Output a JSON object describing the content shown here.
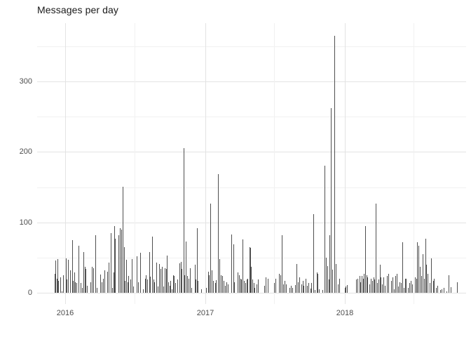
{
  "chart_data": {
    "type": "bar",
    "title": "Messages per day",
    "xlabel": "",
    "ylabel": "",
    "x_unit": "date (daily)",
    "start_date": "2015-12-04",
    "x_ticks": [
      {
        "label": "2016",
        "day": 28
      },
      {
        "label": "2017",
        "day": 394
      },
      {
        "label": "2018",
        "day": 759
      }
    ],
    "x_minor_days": [
      210,
      575,
      940
    ],
    "y_ticks": [
      0,
      100,
      200,
      300
    ],
    "y_minor": [
      50,
      150,
      250,
      350
    ],
    "ylim": [
      0,
      383
    ],
    "grid": true,
    "legend": false,
    "colors": {
      "background": "#ffffff",
      "bar": "#4f4f4f",
      "grid_major": "#e3e3e3",
      "grid_minor": "#f1f1f1",
      "axis_text": "#4d4d4d",
      "title_text": "#1a1a1a"
    },
    "bars": [
      [
        0,
        27
      ],
      [
        2,
        46
      ],
      [
        5,
        20
      ],
      [
        7,
        48
      ],
      [
        10,
        17
      ],
      [
        14,
        22
      ],
      [
        18,
        2
      ],
      [
        22,
        25
      ],
      [
        29,
        49
      ],
      [
        32,
        19
      ],
      [
        35,
        47
      ],
      [
        41,
        32
      ],
      [
        45,
        75
      ],
      [
        48,
        17
      ],
      [
        51,
        29
      ],
      [
        54,
        15
      ],
      [
        57,
        14
      ],
      [
        62,
        67
      ],
      [
        67,
        14
      ],
      [
        71,
        7
      ],
      [
        75,
        58
      ],
      [
        78,
        37
      ],
      [
        81,
        34
      ],
      [
        85,
        10
      ],
      [
        94,
        15
      ],
      [
        98,
        37
      ],
      [
        101,
        35
      ],
      [
        106,
        82
      ],
      [
        110,
        7
      ],
      [
        119,
        26
      ],
      [
        123,
        15
      ],
      [
        127,
        20
      ],
      [
        130,
        32
      ],
      [
        138,
        30
      ],
      [
        141,
        43
      ],
      [
        147,
        85
      ],
      [
        150,
        7
      ],
      [
        155,
        29
      ],
      [
        156,
        95
      ],
      [
        158,
        77
      ],
      [
        167,
        82
      ],
      [
        171,
        92
      ],
      [
        174,
        90
      ],
      [
        178,
        151
      ],
      [
        182,
        65
      ],
      [
        183,
        17
      ],
      [
        187,
        47
      ],
      [
        191,
        15
      ],
      [
        193,
        24
      ],
      [
        198,
        19
      ],
      [
        202,
        48
      ],
      [
        205,
        9
      ],
      [
        215,
        52
      ],
      [
        218,
        15
      ],
      [
        224,
        57
      ],
      [
        231,
        5
      ],
      [
        237,
        20
      ],
      [
        238,
        25
      ],
      [
        242,
        19
      ],
      [
        248,
        58
      ],
      [
        250,
        23
      ],
      [
        255,
        80
      ],
      [
        259,
        19
      ],
      [
        261,
        15
      ],
      [
        266,
        43
      ],
      [
        270,
        9
      ],
      [
        273,
        41
      ],
      [
        277,
        34
      ],
      [
        281,
        37
      ],
      [
        284,
        9
      ],
      [
        288,
        35
      ],
      [
        292,
        34
      ],
      [
        294,
        53
      ],
      [
        297,
        15
      ],
      [
        301,
        10
      ],
      [
        303,
        17
      ],
      [
        306,
        5
      ],
      [
        310,
        25
      ],
      [
        312,
        24
      ],
      [
        316,
        14
      ],
      [
        321,
        19
      ],
      [
        326,
        42
      ],
      [
        330,
        44
      ],
      [
        333,
        34
      ],
      [
        337,
        205
      ],
      [
        339,
        25
      ],
      [
        343,
        73
      ],
      [
        346,
        24
      ],
      [
        350,
        20
      ],
      [
        354,
        35
      ],
      [
        358,
        7
      ],
      [
        367,
        40
      ],
      [
        369,
        19
      ],
      [
        372,
        92
      ],
      [
        374,
        17
      ],
      [
        383,
        5
      ],
      [
        396,
        7
      ],
      [
        401,
        30
      ],
      [
        404,
        25
      ],
      [
        407,
        127
      ],
      [
        411,
        32
      ],
      [
        415,
        17
      ],
      [
        420,
        14
      ],
      [
        422,
        18
      ],
      [
        427,
        168
      ],
      [
        431,
        48
      ],
      [
        435,
        25
      ],
      [
        438,
        24
      ],
      [
        442,
        17
      ],
      [
        446,
        10
      ],
      [
        449,
        15
      ],
      [
        454,
        12
      ],
      [
        462,
        83
      ],
      [
        467,
        69
      ],
      [
        470,
        15
      ],
      [
        479,
        29
      ],
      [
        483,
        25
      ],
      [
        486,
        20
      ],
      [
        488,
        19
      ],
      [
        492,
        76
      ],
      [
        495,
        17
      ],
      [
        499,
        14
      ],
      [
        502,
        19
      ],
      [
        505,
        20
      ],
      [
        510,
        65
      ],
      [
        512,
        64
      ],
      [
        514,
        37
      ],
      [
        517,
        19
      ],
      [
        521,
        14
      ],
      [
        523,
        7
      ],
      [
        528,
        12
      ],
      [
        532,
        19
      ],
      [
        548,
        10
      ],
      [
        552,
        22
      ],
      [
        557,
        20
      ],
      [
        574,
        14
      ],
      [
        578,
        20
      ],
      [
        587,
        27
      ],
      [
        591,
        25
      ],
      [
        594,
        82
      ],
      [
        598,
        12
      ],
      [
        602,
        17
      ],
      [
        606,
        12
      ],
      [
        614,
        7
      ],
      [
        618,
        10
      ],
      [
        622,
        7
      ],
      [
        629,
        11
      ],
      [
        633,
        41
      ],
      [
        637,
        15
      ],
      [
        641,
        22
      ],
      [
        645,
        12
      ],
      [
        649,
        17
      ],
      [
        651,
        10
      ],
      [
        657,
        20
      ],
      [
        661,
        10
      ],
      [
        664,
        14
      ],
      [
        669,
        6
      ],
      [
        672,
        14
      ],
      [
        677,
        112
      ],
      [
        681,
        4
      ],
      [
        686,
        29
      ],
      [
        688,
        27
      ],
      [
        692,
        5
      ],
      [
        701,
        4
      ],
      [
        706,
        180
      ],
      [
        710,
        50
      ],
      [
        713,
        38
      ],
      [
        718,
        19
      ],
      [
        719,
        82
      ],
      [
        723,
        262
      ],
      [
        727,
        33
      ],
      [
        732,
        365
      ],
      [
        736,
        41
      ],
      [
        741,
        12
      ],
      [
        745,
        20
      ],
      [
        759,
        7
      ],
      [
        762,
        9
      ],
      [
        765,
        11
      ],
      [
        789,
        19
      ],
      [
        793,
        20
      ],
      [
        798,
        24
      ],
      [
        800,
        15
      ],
      [
        804,
        24
      ],
      [
        807,
        20
      ],
      [
        809,
        27
      ],
      [
        813,
        95
      ],
      [
        816,
        25
      ],
      [
        818,
        22
      ],
      [
        823,
        12
      ],
      [
        828,
        20
      ],
      [
        831,
        17
      ],
      [
        834,
        22
      ],
      [
        837,
        19
      ],
      [
        840,
        127
      ],
      [
        844,
        14
      ],
      [
        848,
        19
      ],
      [
        851,
        40
      ],
      [
        853,
        22
      ],
      [
        857,
        12
      ],
      [
        861,
        22
      ],
      [
        864,
        10
      ],
      [
        869,
        24
      ],
      [
        873,
        27
      ],
      [
        881,
        17
      ],
      [
        884,
        22
      ],
      [
        888,
        5
      ],
      [
        892,
        24
      ],
      [
        895,
        27
      ],
      [
        899,
        9
      ],
      [
        903,
        15
      ],
      [
        906,
        14
      ],
      [
        910,
        72
      ],
      [
        914,
        7
      ],
      [
        917,
        20
      ],
      [
        920,
        20
      ],
      [
        924,
        7
      ],
      [
        928,
        14
      ],
      [
        932,
        17
      ],
      [
        936,
        12
      ],
      [
        943,
        22
      ],
      [
        946,
        20
      ],
      [
        949,
        72
      ],
      [
        952,
        67
      ],
      [
        956,
        37
      ],
      [
        960,
        24
      ],
      [
        964,
        55
      ],
      [
        967,
        20
      ],
      [
        970,
        77
      ],
      [
        973,
        40
      ],
      [
        977,
        27
      ],
      [
        981,
        14
      ],
      [
        985,
        49
      ],
      [
        990,
        17
      ],
      [
        993,
        20
      ],
      [
        998,
        7
      ],
      [
        1002,
        10
      ],
      [
        1009,
        4
      ],
      [
        1013,
        5
      ],
      [
        1018,
        7
      ],
      [
        1026,
        2
      ],
      [
        1031,
        25
      ],
      [
        1037,
        8
      ],
      [
        1053,
        15
      ]
    ]
  }
}
